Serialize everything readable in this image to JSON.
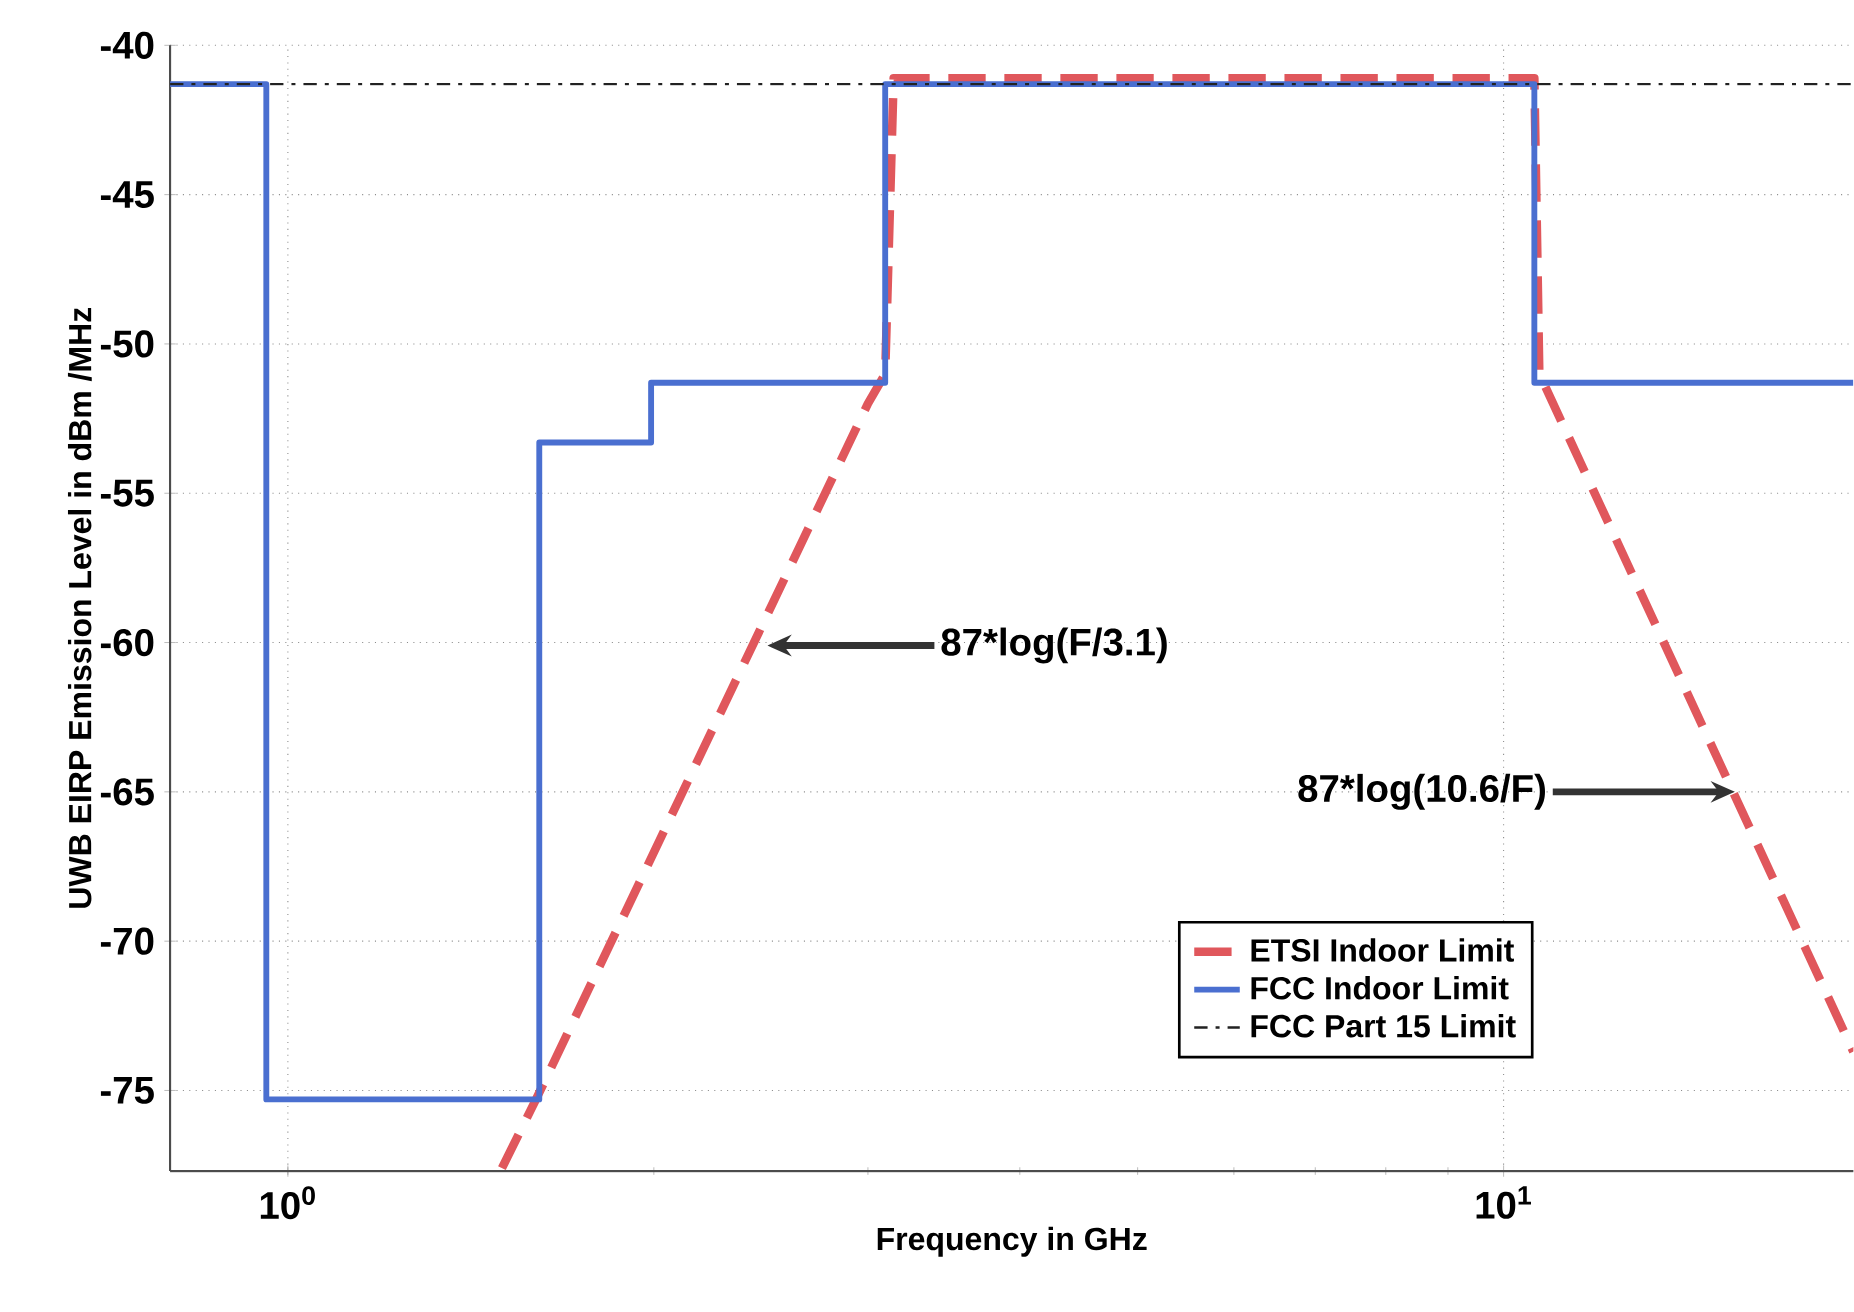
{
  "chart_data": {
    "type": "line",
    "xlabel": "Frequency in GHz",
    "ylabel": "UWB EIRP Emission Level in dBm /MHz",
    "log": "x",
    "grid": true,
    "legend": "bottom right",
    "marker": "none",
    "xlim": [
      0.8,
      19.4
    ],
    "ylim": [
      -77.7,
      -40
    ],
    "xticks": [
      {
        "value": 1,
        "label": "10$^{0}$"
      },
      {
        "value": 10,
        "label": "10$^{1}$"
      }
    ],
    "yticks": [
      -40,
      -45,
      -50,
      -55,
      -60,
      -65,
      -70,
      -75
    ],
    "series": [
      {
        "name": "ETSI Indoor Limit",
        "color": "#e0575c",
        "line_style": "dashed",
        "x": [
          1.5,
          1.6,
          3.0,
          3.1,
          3.15,
          10.6,
          10.7,
          19.4
        ],
        "values": [
          -77.6,
          -75.3,
          -52.0,
          -51.0,
          -41.1,
          -41.1,
          -51.0,
          -73.7
        ]
      },
      {
        "name": "FCC Indoor Limit",
        "color": "#4a6fd0",
        "line_style": "solid",
        "type": "step",
        "x": [
          0.8,
          0.96,
          1.61,
          1.99,
          3.1,
          10.6,
          19.4
        ],
        "values": [
          -41.3,
          -75.3,
          -53.3,
          -51.3,
          -41.3,
          -51.3,
          -51.3
        ]
      },
      {
        "name": "FCC Part 15 Limit",
        "color": "#222222",
        "line_style": "dashdot",
        "x": [
          0.8,
          19.4
        ],
        "values": [
          -41.3,
          -41.3
        ]
      }
    ],
    "annotations": [
      {
        "text": "87*log(F/3.1)",
        "x": 2.48,
        "y": -60.1
      },
      {
        "text": "87*log(10.6/F)",
        "x": 15.5,
        "y": -65.0
      }
    ]
  }
}
